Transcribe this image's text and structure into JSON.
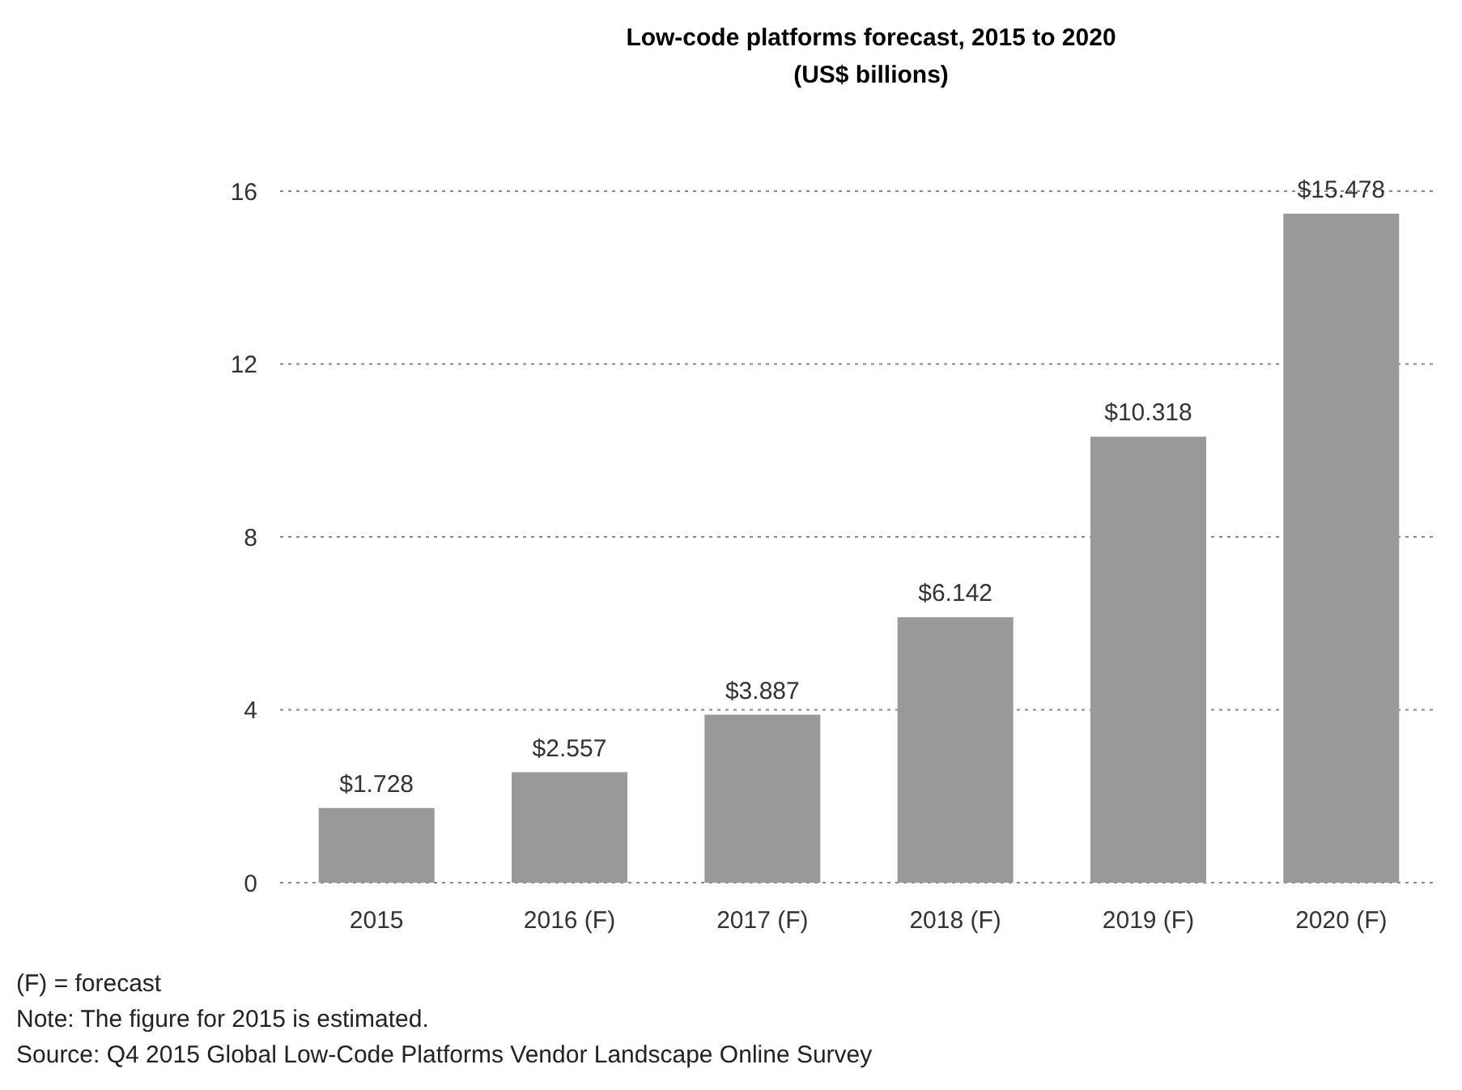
{
  "chart_data": {
    "type": "bar",
    "title": "Low-code platforms forecast, 2015 to 2020",
    "subtitle": "(US$ billions)",
    "categories": [
      "2015",
      "2016 (F)",
      "2017 (F)",
      "2018 (F)",
      "2019 (F)",
      "2020 (F)"
    ],
    "values": [
      1.728,
      2.557,
      3.887,
      6.142,
      10.318,
      15.478
    ],
    "value_labels": [
      "$1.728",
      "$2.557",
      "$3.887",
      "$6.142",
      "$10.318",
      "$15.478"
    ],
    "color": "#999999",
    "ylim": [
      0,
      16
    ],
    "yticks": [
      0,
      4,
      8,
      12,
      16
    ],
    "grid": "y",
    "line_style": "dotted",
    "annotations": [
      "(F) = forecast",
      "Note: The figure for 2015 is estimated.",
      "Source: Q4 2015 Global Low-Code Platforms Vendor Landscape Online Survey"
    ]
  }
}
